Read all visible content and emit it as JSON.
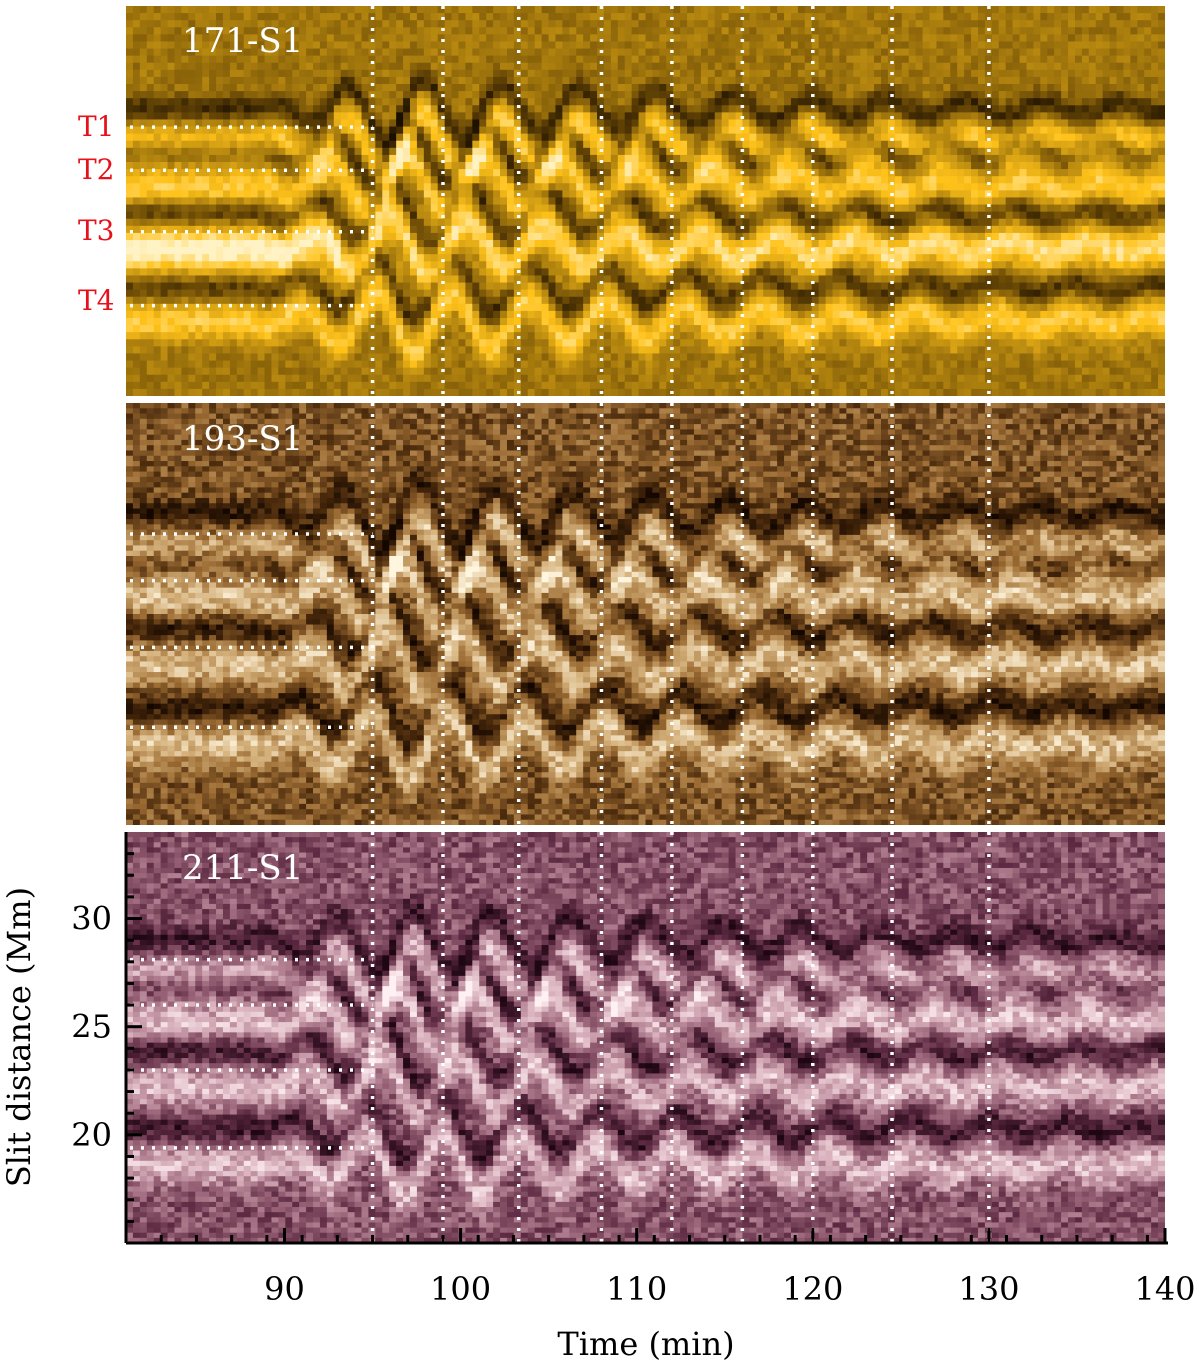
{
  "chart_data": {
    "type": "heatmap",
    "subtype": "time-distance diagram (stacked panels)",
    "xlabel": "Time (min)",
    "ylabel": "Slit distance (Mm)",
    "xlim": [
      81,
      140
    ],
    "ylim": [
      15,
      34
    ],
    "xticks": [
      90,
      100,
      110,
      120,
      130,
      140
    ],
    "xtick_labels": [
      "90",
      "100",
      "110",
      "120",
      "130",
      "140"
    ],
    "yticks": [
      20,
      25,
      30
    ],
    "ytick_labels": [
      "20",
      "25",
      "30"
    ],
    "vertical_markers_min": [
      95,
      99,
      103.3,
      108,
      112,
      116,
      120,
      124.5,
      130
    ],
    "thread_labels": [
      "T1",
      "T2",
      "T3",
      "T4"
    ],
    "thread_positions_Mm": [
      28.1,
      26.0,
      23.0,
      19.4
    ],
    "thread_marker_end_min": 95,
    "panels": [
      {
        "name": "171-S1",
        "colormap": [
          "#1a0e00",
          "#6b4a06",
          "#b98a10",
          "#ffc21a",
          "#fff2c4"
        ]
      },
      {
        "name": "193-S1",
        "colormap": [
          "#140700",
          "#4a2a0c",
          "#9a6a32",
          "#d4b07a",
          "#fff6e0"
        ]
      },
      {
        "name": "211-S1",
        "colormap": [
          "#1e0612",
          "#5a2840",
          "#9a6478",
          "#d8b0bc",
          "#fff0f4"
        ]
      }
    ],
    "colors": {
      "thread_label": "#e8101a",
      "panel_label": "#ffffff",
      "marker": "#ffffff",
      "axis": "#000000"
    }
  }
}
